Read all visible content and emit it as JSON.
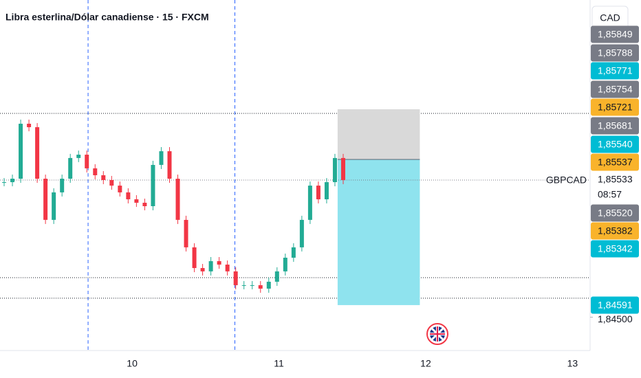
{
  "chart_data": {
    "type": "candlestick",
    "title": "Libra esterlina/Dólar canadiense · 15 · FXCM",
    "currency": "CAD",
    "symbol": "GBPCAD",
    "countdown": "08:57",
    "close": [
      1.85517,
      1.85543,
      1.85957,
      1.85931,
      1.85543,
      1.85233,
      1.8544,
      1.85543,
      1.85699,
      1.85724,
      1.85621,
      1.85569,
      1.85533,
      1.85491,
      1.8544,
      1.85388,
      1.85362,
      1.85336,
      1.85647,
      1.8575,
      1.85543,
      1.85233,
      1.85026,
      1.8487,
      1.84845,
      1.84922,
      1.84896,
      1.84845,
      1.84741,
      1.84741,
      1.84741,
      1.84715,
      1.84767,
      1.84845,
      1.84948,
      1.85026,
      1.85233,
      1.85491,
      1.85388,
      1.85517,
      1.85699,
      1.85533
    ],
    "up_color": "#22ab94",
    "down_color": "#f23645",
    "ylim": [
      1.84249,
      1.86889
    ],
    "yticks": [
      {
        "value": 1.845,
        "label": "1,84500"
      }
    ],
    "xlim": [
      9.1,
      13.12
    ],
    "xticks": [
      10,
      11,
      12,
      13
    ],
    "session_breaks": [
      9.7,
      10.7
    ],
    "hlines": [
      1.86035,
      1.84798,
      1.84643
    ],
    "current_price": {
      "value": 1.85533,
      "label": "1,85533"
    },
    "position": {
      "stop": 1.86066,
      "entry": 1.85688,
      "target": 1.84591,
      "x_start": 11.4,
      "x_end": 11.96
    },
    "price_tags": [
      {
        "label": "1,85849",
        "color": "#787b86"
      },
      {
        "label": "1,85788",
        "color": "#787b86"
      },
      {
        "label": "1,85771",
        "color": "#00bcd4"
      },
      {
        "label": "1,85754",
        "color": "#787b86"
      },
      {
        "label": "1,85721",
        "color": "#f9b32b"
      },
      {
        "label": "1,85681",
        "color": "#787b86"
      },
      {
        "label": "1,85540",
        "color": "#00bcd4"
      },
      {
        "label": "1,85537",
        "color": "#f9b32b"
      },
      {
        "label": "1,85520",
        "color": "#787b86"
      },
      {
        "label": "1,85382",
        "color": "#f9b32b"
      },
      {
        "label": "1,85342",
        "color": "#00bcd4"
      },
      {
        "label": "1,84591",
        "color": "#00bcd4"
      }
    ]
  }
}
